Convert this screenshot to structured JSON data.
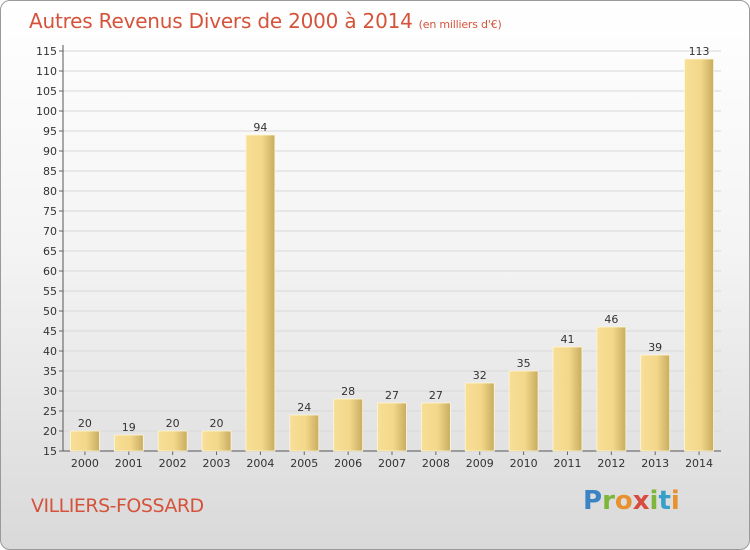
{
  "title": {
    "main": "Autres Revenus Divers de 2000 à 2014",
    "subtitle": "(en milliers d'€)"
  },
  "location": "VILLIERS-FOSSARD",
  "logo": {
    "letters": [
      "P",
      "r",
      "o",
      "x",
      "i",
      "t",
      "i"
    ]
  },
  "colors": {
    "title": "#d5533b",
    "bar_light": "#f7df96",
    "bar_dark": "#c8ac5f",
    "grid": "#d8d8d8"
  },
  "chart_data": {
    "type": "bar",
    "categories": [
      "2000",
      "2001",
      "2002",
      "2003",
      "2004",
      "2005",
      "2006",
      "2007",
      "2008",
      "2009",
      "2010",
      "2011",
      "2012",
      "2013",
      "2014"
    ],
    "values": [
      20,
      19,
      20,
      20,
      94,
      24,
      28,
      27,
      27,
      32,
      35,
      41,
      46,
      39,
      113
    ],
    "ylim": [
      15,
      115
    ],
    "ytick_step": 5,
    "grid": true,
    "xlabel": "",
    "ylabel": ""
  }
}
